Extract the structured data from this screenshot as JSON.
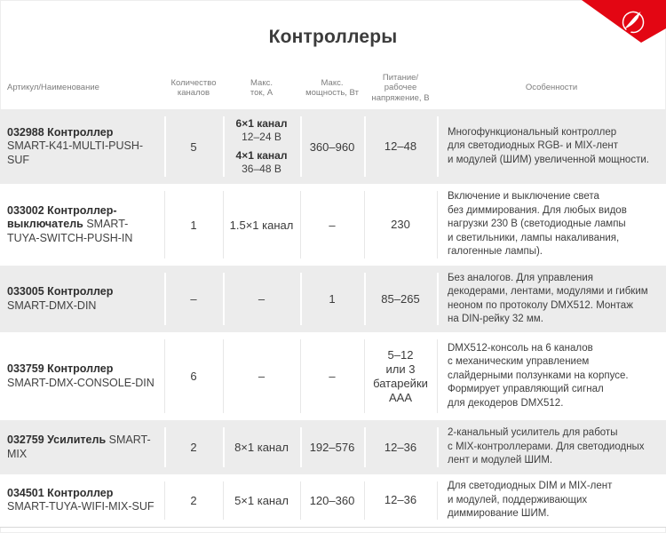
{
  "header": {
    "title": "Контроллеры"
  },
  "logo": {
    "corner_color": "#e30613",
    "icon": "arlight-swoosh-icon"
  },
  "table": {
    "columns": [
      {
        "label": "Артикул/Наименование"
      },
      {
        "label": "Количество\nканалов"
      },
      {
        "label": "Макс.\nток, А"
      },
      {
        "label": "Макс.\nмощность, Вт"
      },
      {
        "label": "Питание/\nрабочее\nнапряжение, В"
      },
      {
        "label": "Особенности"
      }
    ],
    "rows": [
      {
        "article": "032988 Контроллер",
        "model": "SMART-K41-MULTI-PUSH-SUF",
        "channels": "5",
        "current": [
          {
            "label": "6×1 канал",
            "value": "12–24 В"
          },
          {
            "label": "4×1 канал",
            "value": "36–48 В"
          }
        ],
        "power": "360–960",
        "voltage": "12–48",
        "features": "Многофункциональный контроллер\nдля светодиодных RGB- и MIX-лент\nи модулей (ШИМ) увеличенной мощности."
      },
      {
        "article": "033002 Контроллер-выключатель",
        "model": "SMART-TUYA-SWITCH-PUSH-IN",
        "channels": "1",
        "current": "1.5×1 канал",
        "power": "–",
        "voltage": "230",
        "features": "Включение и выключение света\nбез диммирования. Для любых видов\nнагрузки 230 В (светодиодные лампы\nи светильники, лампы накаливания,\nгалогенные лампы)."
      },
      {
        "article": "033005 Контроллер",
        "model": "SMART-DMX-DIN",
        "channels": "–",
        "current": "–",
        "power": "1",
        "voltage": "85–265",
        "features": "Без аналогов. Для управления\nдекодерами, лентами, модулями и гибким\nнеоном по протоколу DMX512. Монтаж\nна DIN-рейку 32 мм."
      },
      {
        "article": "033759 Контроллер",
        "model": "SMART-DMX-CONSOLE-DIN",
        "channels": "6",
        "current": "–",
        "power": "–",
        "voltage": "5–12\nили 3\nбатарейки\nAAA",
        "features": "DMX512-консоль на 6 каналов\nс механическим управлением\nслайдерными ползунками на корпусе.\nФормирует управляющий сигнал\nдля декодеров DMX512."
      },
      {
        "article": "032759 Усилитель",
        "model": "SMART-MIX",
        "channels": "2",
        "current": "8×1 канал",
        "power": "192–576",
        "voltage": "12–36",
        "features": "2-канальный усилитель для работы\nс MIX-контроллерами. Для светодиодных\nлент и модулей ШИМ."
      },
      {
        "article": "034501 Контроллер",
        "model": "SMART-TUYA-WIFI-MIX-SUF",
        "channels": "2",
        "current": "5×1 канал",
        "power": "120–360",
        "voltage": "12–36",
        "features": "Для светодиодных DIM и MIX-лент\nи модулей, поддерживающих\nдиммирование ШИМ."
      }
    ]
  }
}
